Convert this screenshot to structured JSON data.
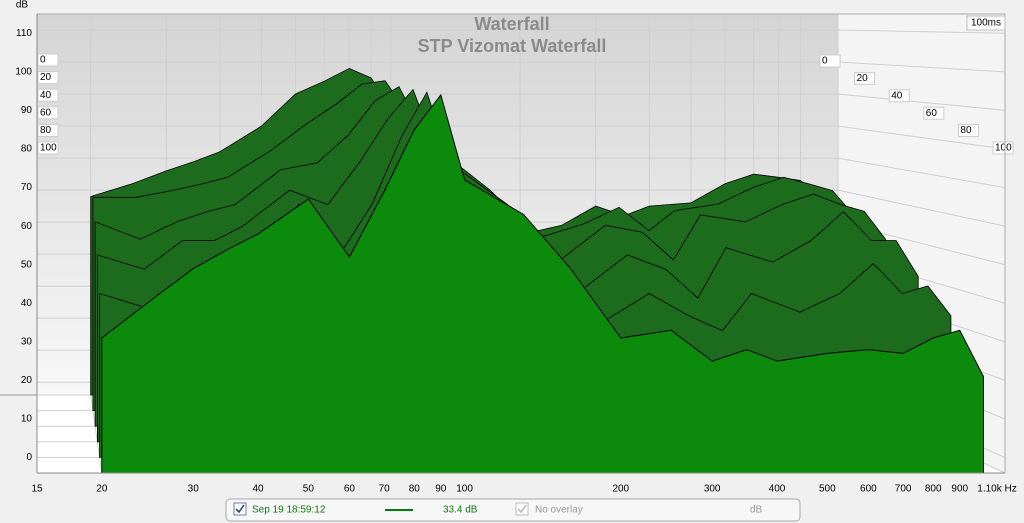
{
  "chart_data": {
    "type": "waterfall",
    "title": "Waterfall",
    "subtitle": "STP Vizomat Waterfall",
    "y_label": "dB",
    "time_label": "100ms",
    "log_x": true,
    "grid": true,
    "fill_color": "#0b8a0b",
    "back_fill_color": "#1d6b1d",
    "stroke_color": "#000000",
    "x": [
      20,
      25,
      30,
      35,
      40,
      50,
      60,
      70,
      80,
      90,
      100,
      130,
      160,
      200,
      250,
      300,
      350,
      400,
      500,
      600,
      700,
      800,
      900,
      1000
    ],
    "slices": [
      {
        "z": 0,
        "values": [
          58,
          62,
          66,
          69,
          72,
          80,
          90,
          94,
          98,
          95,
          85,
          60,
          57,
          46,
          49,
          55,
          52,
          55,
          56,
          62,
          65,
          64,
          63,
          56
        ]
      },
      {
        "z": 20,
        "values": [
          60,
          60,
          62,
          64,
          66,
          74,
          82,
          88,
          94,
          95,
          86,
          64,
          58,
          48,
          52,
          57,
          50,
          56,
          58,
          63,
          66,
          64,
          62,
          55
        ]
      },
      {
        "z": 40,
        "values": [
          55,
          50,
          55,
          58,
          60,
          70,
          72,
          80,
          90,
          94,
          82,
          66,
          56,
          44,
          54,
          52,
          44,
          57,
          55,
          60,
          63,
          60,
          58,
          50
        ]
      },
      {
        "z": 60,
        "values": [
          48,
          44,
          52,
          52,
          56,
          66,
          62,
          74,
          86,
          94,
          78,
          66,
          54,
          38,
          48,
          44,
          36,
          50,
          46,
          52,
          60,
          52,
          52,
          42
        ]
      },
      {
        "z": 80,
        "values": [
          40,
          36,
          45,
          40,
          46,
          64,
          50,
          64,
          82,
          94,
          75,
          64,
          52,
          32,
          40,
          34,
          30,
          40,
          35,
          40,
          48,
          40,
          42,
          34
        ]
      },
      {
        "z": 100,
        "values": [
          31,
          41,
          49,
          54,
          58,
          67,
          52,
          69,
          85,
          94,
          72,
          63,
          49,
          31,
          33,
          25,
          28,
          25,
          27,
          28,
          27,
          31,
          33,
          21
        ]
      }
    ],
    "xlim": [
      15,
      1100
    ],
    "xticks": [
      15,
      20,
      30,
      40,
      50,
      60,
      70,
      80,
      90,
      100,
      200,
      300,
      400,
      500,
      600,
      700,
      800,
      900,
      {
        "value": 1100,
        "label": "1.10k Hz"
      }
    ],
    "ylim": [
      -4,
      115
    ],
    "yticks": [
      0,
      10,
      20,
      30,
      40,
      50,
      60,
      70,
      80,
      90,
      100,
      110
    ],
    "zlim": [
      0,
      100
    ],
    "zticks": [
      0,
      20,
      40,
      60,
      80,
      100
    ],
    "legend": {
      "date": "Sep 19 18:59:12",
      "value": "33.4 dB",
      "overlay": "No overlay",
      "unit": "dB",
      "color": "#0a7a0a"
    }
  }
}
